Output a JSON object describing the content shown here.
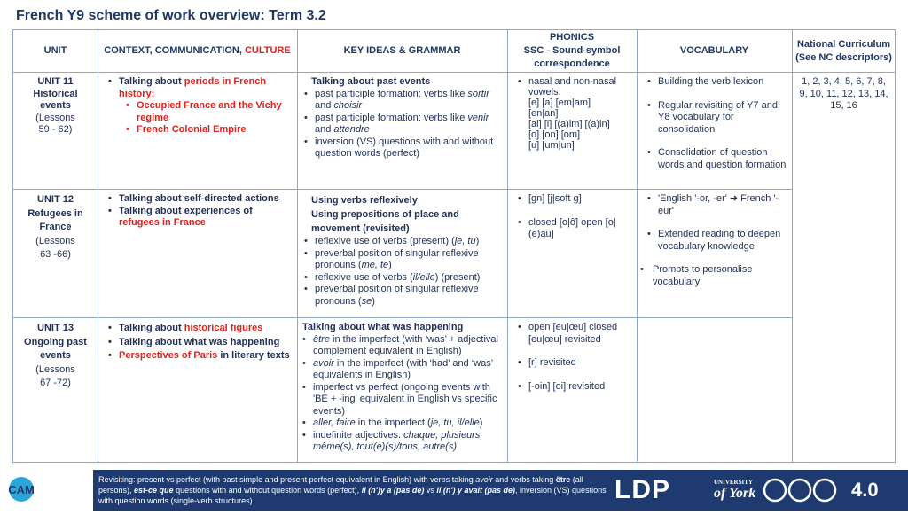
{
  "header": {
    "title": "French Y9 scheme of work overview: Term 3.2"
  },
  "table": {
    "headers": [
      [
        "UNIT"
      ],
      [
        "CONTEXT, COMMUNICATION, ",
        "CULTURE"
      ],
      [
        "KEY IDEAS & GRAMMAR"
      ],
      [
        "PHONICS",
        "SSC - Sound-symbol correspondence"
      ],
      [
        "VOCABULARY"
      ],
      [
        "National Curriculum",
        "(See NC descriptors)"
      ]
    ],
    "rows": [
      [
        [
          "UNIT 11",
          "Historical events",
          "(Lessons",
          "59 - 62)"
        ],
        [
          "Talking about ",
          "periods in French history:",
          "Occupied France and the Vichy regime",
          "French Colonial Empire"
        ],
        [
          "Talking about past events",
          "past participle formation: verbs like ",
          "sortir",
          " and ",
          "choisir",
          "past participle formation: verbs like ",
          "venir",
          " and ",
          "attendre",
          "inversion (VS) questions with and without question words (perfect)"
        ],
        [
          "nasal and non-nasal vowels:",
          "[e] [a] [em|am]",
          "[en|an]",
          "[ai] [i] [(a)im] [(a)in]",
          "[o] [on] [om]",
          "[u] [um|un]"
        ],
        [
          "Building the verb lexicon",
          "Regular revisiting of Y7 and Y8 vocabulary for consolidation",
          "Consolidation of question words and question formation"
        ],
        [
          "1, 2, 3, 4, 5, 6, 7, 8, 9, 10, 11, 12, 13, 14, 15, 16"
        ]
      ],
      [
        [
          "UNIT 12",
          "Refugees in",
          "France",
          "(Lessons",
          "63 -66)"
        ],
        [
          "Talking about self-directed actions",
          "Talking about experiences of ",
          "refugees in France"
        ],
        [
          "Using verbs reflexively",
          "Using prepositions of place and movement (revisited)",
          "reflexive use of verbs (present) (",
          "je, tu",
          ")",
          "preverbal position of singular reflexive pronouns (",
          "me, te",
          ")",
          "reflexive use of verbs (",
          "il/elle",
          ") (present)",
          "preverbal position of singular reflexive pronouns (",
          "se",
          ")"
        ],
        [
          "[gn] [j|soft g]",
          "closed [o|ô] open [o|(e)au]"
        ],
        [
          "'English '-or, -er' ➜ French '-eur'",
          "Extended reading to deepen vocabulary knowledge",
          "Prompts to personalise vocabulary"
        ]
      ],
      [
        [
          "UNIT 13",
          "Ongoing past",
          "events",
          "(Lessons",
          "67 -72)"
        ],
        [
          "Talking about ",
          "historical figures",
          "Talking about what was happening",
          "Perspectives of Paris",
          " in literary texts"
        ],
        [
          "Talking about what was happening",
          "être",
          " in the imperfect (with ‘was’ + adjectival complement equivalent in English)",
          "avoir",
          " in the imperfect (with ‘had’ and ‘was’ equivalents in English)",
          "imperfect vs perfect (ongoing events with 'BE + -ing' equivalent in English vs specific events)",
          "aller, faire",
          " in the imperfect (",
          "je, tu, il/elle",
          ")",
          "indefinite adjectives: ",
          "chaque, plusieurs, même(s), tout(e)(s)/tous, autre(s)"
        ],
        [
          "open [eu|œu] closed [eu|œu] revisited",
          "[r] revisited",
          "[-oin] [oi] revisited"
        ]
      ]
    ]
  },
  "footer": {
    "text": [
      "Revisiting: present vs perfect (with past simple and present perfect equivalent in English) with verbs taking ",
      "avoir",
      " and verbs taking ",
      "être",
      " (all persons), ",
      "est-ce que",
      " questions with and without question words (perfect), ",
      "il (n')y a (pas de)",
      " vs ",
      "il (n') y avait (pas de)",
      ", inversion (VS) questions with question words (single-verb structures)"
    ],
    "logos": {
      "cam": "CAM",
      "ldp": "LDP",
      "york1": "UNIVERSITY",
      "york2": "of York",
      "license": "4.0"
    }
  }
}
